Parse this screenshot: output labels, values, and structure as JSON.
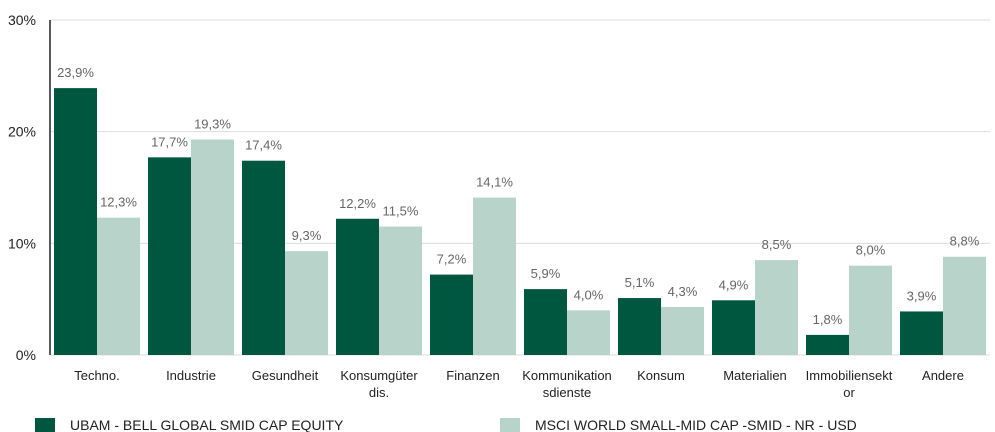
{
  "chart_data": {
    "type": "bar",
    "categories": [
      [
        "Techno."
      ],
      [
        "Industrie"
      ],
      [
        "Gesundheit"
      ],
      [
        "Konsumgüter",
        "dis."
      ],
      [
        "Finanzen"
      ],
      [
        "Kommunikation",
        "sdienste"
      ],
      [
        "Konsum"
      ],
      [
        "Materialien"
      ],
      [
        "Immobiliensekt",
        "or"
      ],
      [
        "Andere"
      ]
    ],
    "series": [
      {
        "name": "UBAM - BELL GLOBAL SMID CAP EQUITY",
        "color": "#00573f",
        "values": [
          23.9,
          17.7,
          17.4,
          12.2,
          7.2,
          5.9,
          5.1,
          4.9,
          1.8,
          3.9
        ],
        "labels": [
          "23,9%",
          "17,7%",
          "17,4%",
          "12,2%",
          "7,2%",
          "5,9%",
          "5,1%",
          "4,9%",
          "1,8%",
          "3,9%"
        ]
      },
      {
        "name": "MSCI WORLD SMALL-MID CAP -SMID - NR - USD",
        "color": "#b8d4ca",
        "values": [
          12.3,
          19.3,
          9.3,
          11.5,
          14.1,
          4.0,
          4.3,
          8.5,
          8.0,
          8.8
        ],
        "labels": [
          "12,3%",
          "19,3%",
          "9,3%",
          "11,5%",
          "14,1%",
          "4,0%",
          "4,3%",
          "8,5%",
          "8,0%",
          "8,8%"
        ]
      }
    ],
    "yticks": [
      {
        "value": 0,
        "label": "0%"
      },
      {
        "value": 10,
        "label": "10%"
      },
      {
        "value": 20,
        "label": "20%"
      },
      {
        "value": 30,
        "label": "30%"
      }
    ],
    "ylim": [
      0,
      30
    ],
    "grid": true,
    "legend_position": "bottom",
    "gridline_color": "#dddddd",
    "axis_color": "#222222"
  }
}
